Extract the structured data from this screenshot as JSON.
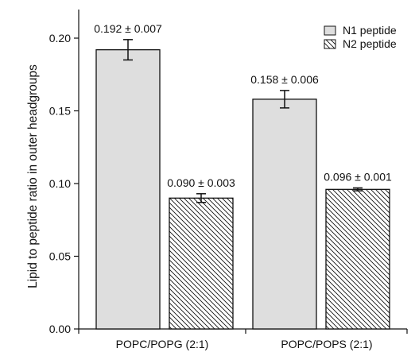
{
  "chart_data": {
    "type": "bar",
    "ylabel": "Lipid to peptide ratio in outer headgroups",
    "xlabel": "",
    "categories": [
      "POPC/POPG (2:1)",
      "POPC/POPS (2:1)"
    ],
    "ylim": [
      0,
      0.22
    ],
    "yticks": [
      0.0,
      0.05,
      0.1,
      0.15,
      0.2
    ],
    "ytick_labels": [
      "0.00",
      "0.05",
      "0.10",
      "0.15",
      "0.20"
    ],
    "legend_position": "top-right",
    "series": [
      {
        "name": "N1 peptide",
        "pattern": "solid",
        "color": "#dedede",
        "values": [
          0.192,
          0.158
        ],
        "errors": [
          0.007,
          0.006
        ],
        "labels": [
          "0.192 ± 0.007",
          "0.158 ± 0.006"
        ]
      },
      {
        "name": "N2 peptide",
        "pattern": "hatch",
        "color": "#ffffff",
        "values": [
          0.09,
          0.096
        ],
        "errors": [
          0.003,
          0.001
        ],
        "labels": [
          "0.090 ± 0.003",
          "0.096 ± 0.001"
        ]
      }
    ]
  }
}
